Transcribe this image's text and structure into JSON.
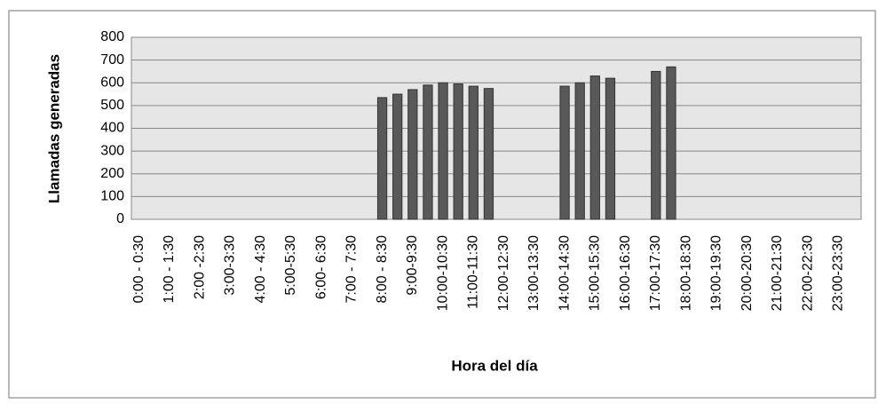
{
  "chart_data": {
    "type": "bar",
    "categories": [
      "0:00 - 0:30",
      null,
      "1:00 - 1:30",
      null,
      "2:00 -2:30",
      null,
      "3:00-3:30",
      null,
      "4:00 - 4:30",
      null,
      "5:00-5:30",
      null,
      "6:00- 6:30",
      null,
      "7:00 - 7:30",
      null,
      "8:00 - 8:30",
      null,
      "9:00-9:30",
      null,
      "10:00-10:30",
      null,
      "11:00-11:30",
      null,
      "12:00-12:30",
      null,
      "13:00-13:30",
      null,
      "14:00-14:30",
      null,
      "15:00-15:30",
      null,
      "16:00-16:30",
      null,
      "17:00-17:30",
      null,
      "18:00-18:30",
      null,
      "19:00-19:30",
      null,
      "20:00-20:30",
      null,
      "21:00-21:30",
      null,
      "22:00-22:30",
      null,
      "23:00-23:30",
      null
    ],
    "values": [
      0,
      0,
      0,
      0,
      0,
      0,
      0,
      0,
      0,
      0,
      0,
      0,
      0,
      0,
      0,
      0,
      535,
      550,
      570,
      590,
      600,
      595,
      585,
      575,
      0,
      0,
      0,
      0,
      585,
      600,
      630,
      620,
      0,
      0,
      650,
      670,
      0,
      0,
      0,
      0,
      0,
      0,
      0,
      0,
      0,
      0,
      0,
      0
    ],
    "color": "#595959",
    "ylabel": "Llamadas generadas",
    "xlabel": "Hora del día",
    "ylim": [
      0,
      800
    ],
    "yticks": [
      0,
      100,
      200,
      300,
      400,
      500,
      600,
      700,
      800
    ],
    "grid": true
  }
}
